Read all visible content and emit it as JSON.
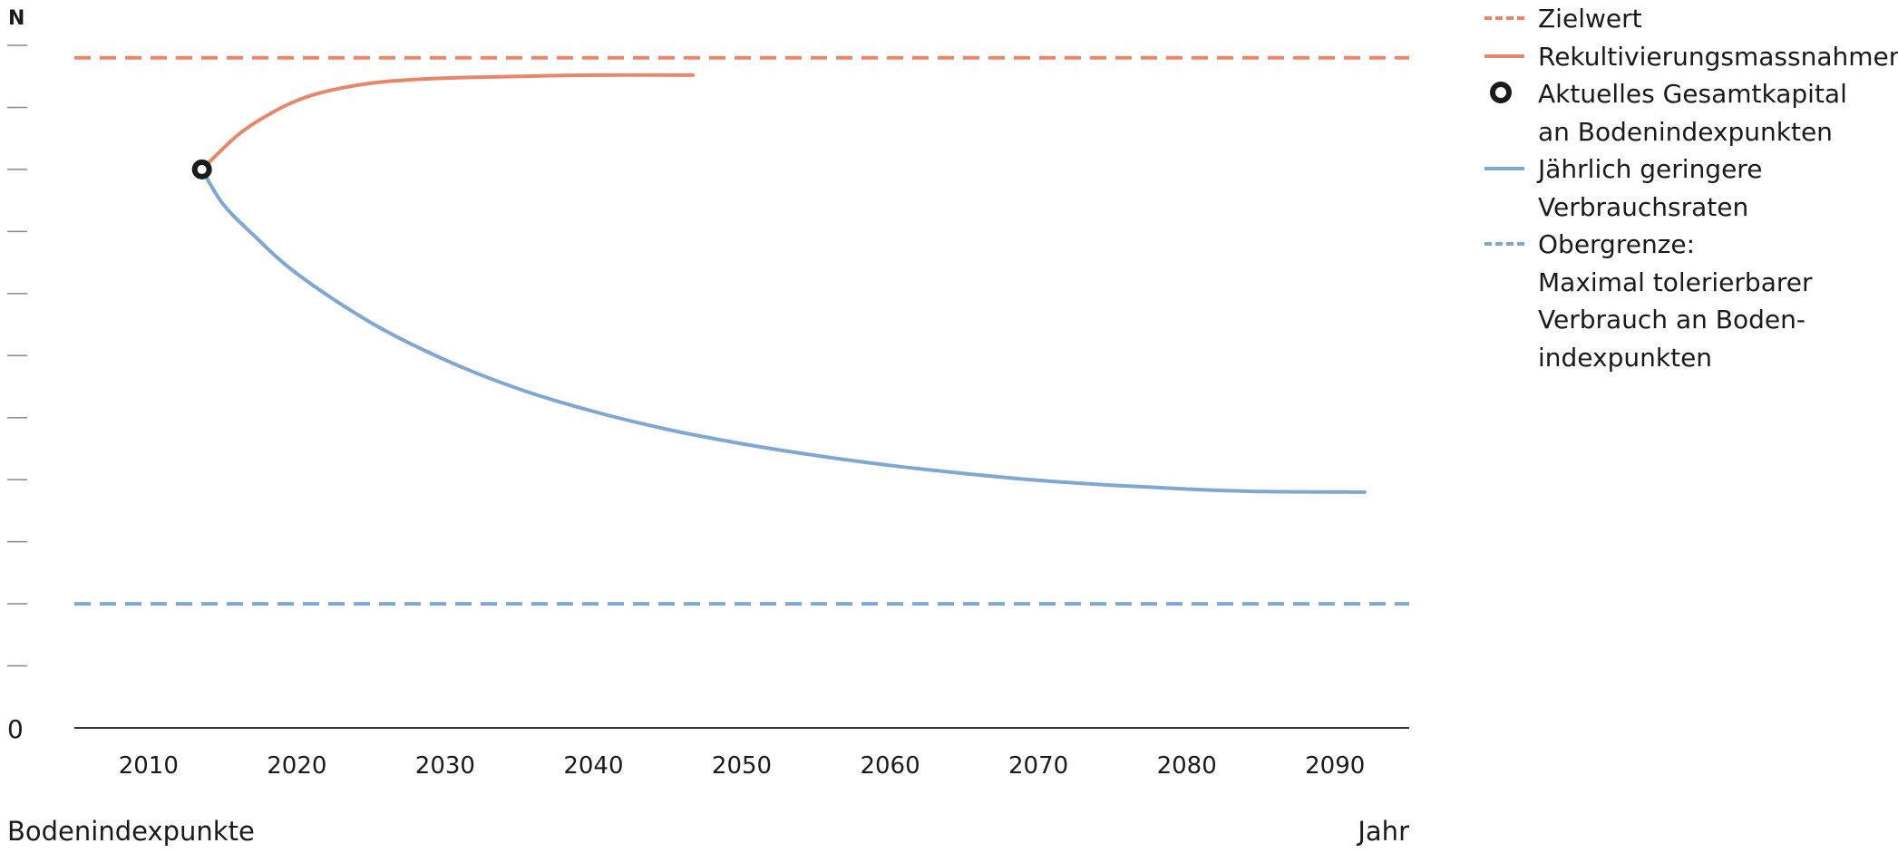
{
  "chart_data": {
    "type": "line",
    "y_axis_top_label": "N",
    "y_axis_zero_label": "0",
    "xlabel": "Jahr",
    "ylabel": "Bodenindexpunkte",
    "x_ticks": [
      2010,
      2020,
      2030,
      2040,
      2050,
      2060,
      2070,
      2080,
      2090
    ],
    "xlim": [
      2005,
      2095
    ],
    "ylim": [
      0,
      11
    ],
    "y_tick_count": 11,
    "grid": false,
    "legend_position": "right",
    "reference_lines": [
      {
        "name": "Zielwert",
        "y": 10.8,
        "style": "dashed",
        "color": "#e8866a"
      },
      {
        "name": "Obergrenze: Maximal tolerierbarer Verbrauch an Bodenindexpunkten",
        "y": 2.0,
        "style": "dashed",
        "color": "#7fa7d4"
      }
    ],
    "current_point": {
      "name": "Aktuelles Gesamtkapital an Bodenindexpunkten",
      "x": 2013.6,
      "y": 9.0
    },
    "series": [
      {
        "name": "Rekultivierungsmassnahmen",
        "color": "#e8866a",
        "style": "solid",
        "x": [
          2013.6,
          2016,
          2018,
          2020,
          2022,
          2025,
          2028,
          2031,
          2035,
          2040,
          2046.7
        ],
        "y": [
          9.0,
          9.55,
          9.87,
          10.11,
          10.26,
          10.39,
          10.45,
          10.48,
          10.5,
          10.52,
          10.52
        ]
      },
      {
        "name": "Jährlich geringere Verbrauchsraten",
        "color": "#7fa7d4",
        "style": "solid",
        "x": [
          2013.6,
          2015,
          2017,
          2020,
          2025,
          2030,
          2035,
          2040,
          2045,
          2050,
          2055,
          2060,
          2065,
          2070,
          2075,
          2080,
          2085,
          2092
        ],
        "y": [
          9.0,
          8.45,
          7.96,
          7.32,
          6.53,
          5.93,
          5.46,
          5.1,
          4.81,
          4.58,
          4.39,
          4.23,
          4.1,
          3.99,
          3.91,
          3.85,
          3.81,
          3.8
        ]
      }
    ]
  },
  "legend": {
    "items": [
      {
        "label": "Zielwert",
        "symbol": "dashed",
        "color": "#e8866a"
      },
      {
        "label": "Rekultivierungsmassnahmen",
        "symbol": "solid",
        "color": "#e8866a"
      },
      {
        "label": "Aktuelles Gesamtkapital\nan Bodenindexpunkten",
        "symbol": "circle",
        "color": "#1a1a1a"
      },
      {
        "label": "Jährlich geringere\nVerbrauchsraten",
        "symbol": "solid",
        "color": "#7fa7d4"
      },
      {
        "label": "Obergrenze:\nMaximal tolerierbarer\nVerbrauch an Boden-\nindexpunkten",
        "symbol": "dashed",
        "color": "#7fa7d4"
      }
    ]
  }
}
